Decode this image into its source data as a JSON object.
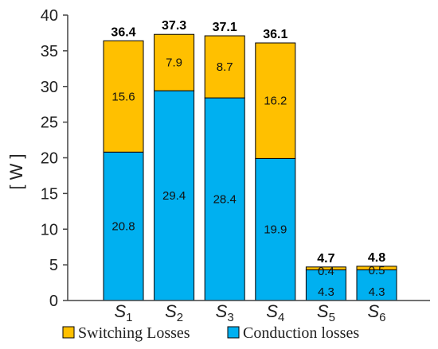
{
  "chart_data": {
    "type": "bar",
    "stacked": true,
    "ylabel": "[ W ]",
    "ylim": [
      0,
      40
    ],
    "yticks": [
      0,
      5,
      10,
      15,
      20,
      25,
      30,
      35,
      40
    ],
    "categories": [
      {
        "base": "S",
        "sub": "1"
      },
      {
        "base": "S",
        "sub": "2"
      },
      {
        "base": "S",
        "sub": "3"
      },
      {
        "base": "S",
        "sub": "4"
      },
      {
        "base": "S",
        "sub": "5"
      },
      {
        "base": "S",
        "sub": "6"
      }
    ],
    "series": [
      {
        "name": "Conduction losses",
        "color": "#00B0F0",
        "values": [
          20.8,
          29.4,
          28.4,
          19.9,
          4.3,
          4.3
        ]
      },
      {
        "name": "Switching Losses",
        "color": "#FFC000",
        "values": [
          15.6,
          7.9,
          8.7,
          16.2,
          0.4,
          0.5
        ]
      }
    ],
    "totals": [
      36.4,
      37.3,
      37.1,
      36.1,
      4.7,
      4.8
    ],
    "legend": {
      "position": "bottom",
      "order": [
        "Switching Losses",
        "Conduction losses"
      ]
    }
  }
}
